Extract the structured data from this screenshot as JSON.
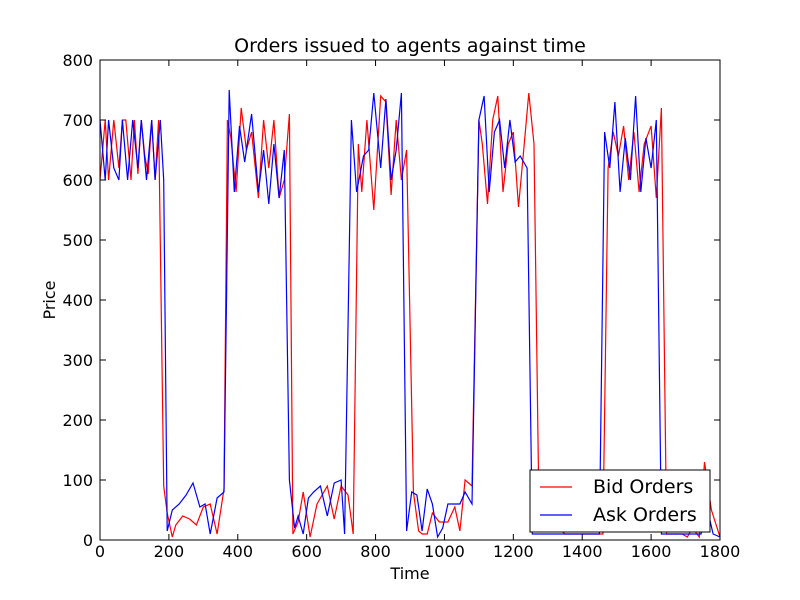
{
  "chart_data": {
    "type": "line",
    "title": "Orders issued to agents against time",
    "xlabel": "Time",
    "ylabel": "Price",
    "xlim": [
      0,
      1800
    ],
    "ylim": [
      0,
      800
    ],
    "xticks": [
      0,
      200,
      400,
      600,
      800,
      1000,
      1200,
      1400,
      1600,
      1800
    ],
    "yticks": [
      0,
      100,
      200,
      300,
      400,
      500,
      600,
      700,
      800
    ],
    "grid": false,
    "legend_position": "lower-right",
    "series": [
      {
        "name": "Bid Orders",
        "color": "#ff0000",
        "x": [
          0,
          15,
          25,
          40,
          55,
          65,
          75,
          90,
          100,
          110,
          120,
          130,
          140,
          150,
          160,
          170,
          185,
          195,
          210,
          220,
          240,
          260,
          280,
          300,
          320,
          340,
          360,
          370,
          380,
          395,
          410,
          425,
          440,
          460,
          475,
          490,
          505,
          520,
          535,
          550,
          560,
          575,
          590,
          610,
          630,
          660,
          680,
          700,
          720,
          735,
          750,
          760,
          775,
          795,
          815,
          830,
          845,
          860,
          875,
          890,
          910,
          925,
          935,
          950,
          965,
          985,
          1010,
          1030,
          1045,
          1060,
          1080,
          1100,
          1110,
          1125,
          1140,
          1155,
          1170,
          1185,
          1200,
          1215,
          1230,
          1245,
          1260,
          1275,
          1290,
          1310,
          1330,
          1350,
          1370,
          1395,
          1420,
          1440,
          1460,
          1475,
          1490,
          1505,
          1520,
          1535,
          1550,
          1565,
          1580,
          1600,
          1615,
          1630,
          1645,
          1660,
          1670,
          1690,
          1705,
          1720,
          1740,
          1755,
          1775,
          1800
        ],
        "values": [
          600,
          700,
          600,
          700,
          620,
          700,
          700,
          600,
          700,
          610,
          700,
          640,
          610,
          700,
          600,
          700,
          90,
          45,
          5,
          25,
          40,
          35,
          25,
          55,
          60,
          10,
          85,
          700,
          670,
          580,
          720,
          650,
          680,
          570,
          700,
          620,
          700,
          570,
          600,
          710,
          10,
          30,
          80,
          5,
          60,
          90,
          35,
          90,
          75,
          10,
          660,
          580,
          700,
          550,
          740,
          730,
          575,
          700,
          600,
          650,
          80,
          15,
          10,
          10,
          45,
          30,
          30,
          55,
          15,
          100,
          90,
          700,
          660,
          560,
          700,
          740,
          580,
          660,
          680,
          555,
          650,
          745,
          660,
          20,
          20,
          20,
          20,
          10,
          10,
          10,
          10,
          10,
          10,
          620,
          680,
          640,
          690,
          600,
          680,
          580,
          660,
          690,
          570,
          720,
          10,
          10,
          10,
          10,
          5,
          20,
          5,
          130,
          50,
          5
        ]
      },
      {
        "name": "Ask Orders",
        "color": "#0000ff",
        "x": [
          0,
          15,
          25,
          40,
          55,
          65,
          80,
          95,
          110,
          120,
          135,
          150,
          160,
          175,
          185,
          195,
          210,
          230,
          250,
          270,
          290,
          305,
          320,
          340,
          360,
          375,
          390,
          405,
          420,
          440,
          460,
          475,
          490,
          505,
          520,
          535,
          550,
          565,
          575,
          590,
          605,
          620,
          640,
          660,
          680,
          700,
          710,
          730,
          745,
          765,
          780,
          795,
          815,
          830,
          845,
          860,
          875,
          890,
          905,
          920,
          935,
          950,
          965,
          980,
          995,
          1010,
          1025,
          1045,
          1060,
          1080,
          1100,
          1115,
          1130,
          1145,
          1160,
          1175,
          1190,
          1205,
          1220,
          1240,
          1255,
          1270,
          1285,
          1300,
          1320,
          1340,
          1360,
          1385,
          1410,
          1430,
          1450,
          1465,
          1480,
          1495,
          1510,
          1525,
          1540,
          1555,
          1570,
          1585,
          1600,
          1615,
          1630,
          1645,
          1660,
          1675,
          1690,
          1710,
          1725,
          1745,
          1760,
          1780,
          1800
        ],
        "values": [
          700,
          600,
          700,
          620,
          600,
          700,
          600,
          700,
          620,
          700,
          600,
          700,
          600,
          700,
          600,
          15,
          50,
          60,
          75,
          95,
          55,
          60,
          10,
          70,
          80,
          750,
          580,
          690,
          630,
          710,
          580,
          650,
          560,
          660,
          570,
          650,
          100,
          20,
          40,
          10,
          70,
          80,
          90,
          40,
          95,
          100,
          10,
          700,
          580,
          640,
          650,
          745,
          620,
          735,
          600,
          650,
          745,
          15,
          80,
          75,
          15,
          85,
          60,
          5,
          20,
          60,
          60,
          60,
          80,
          60,
          700,
          740,
          580,
          680,
          700,
          620,
          700,
          630,
          640,
          620,
          10,
          10,
          10,
          10,
          10,
          10,
          10,
          10,
          10,
          10,
          10,
          680,
          620,
          730,
          580,
          670,
          600,
          740,
          580,
          670,
          620,
          700,
          10,
          10,
          10,
          10,
          10,
          10,
          10,
          10,
          60,
          10,
          5
        ]
      }
    ]
  }
}
